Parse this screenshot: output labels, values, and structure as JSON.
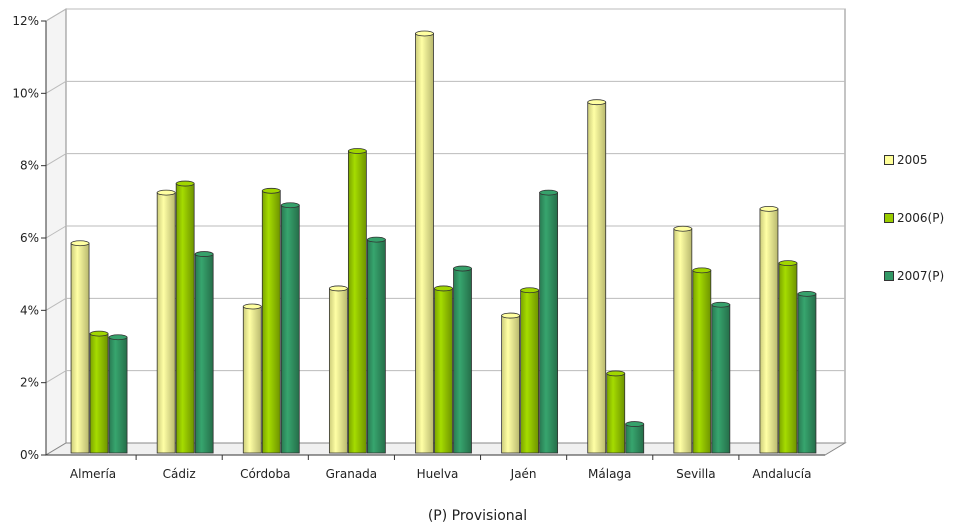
{
  "chart_data": {
    "type": "bar",
    "categories": [
      "Almería",
      "Cádiz",
      "Córdoba",
      "Granada",
      "Huelva",
      "Jaén",
      "Málaga",
      "Sevilla",
      "Andalucía"
    ],
    "series": [
      {
        "name": "2005",
        "color": "#ffff99",
        "values": [
          5.8,
          7.2,
          4.05,
          4.55,
          11.6,
          3.8,
          9.7,
          6.2,
          6.75
        ]
      },
      {
        "name": "2006(P)",
        "color": "#99cc00",
        "values": [
          3.3,
          7.45,
          7.25,
          8.35,
          4.55,
          4.5,
          2.2,
          5.05,
          5.25
        ]
      },
      {
        "name": "2007(P)",
        "color": "#339966",
        "values": [
          3.2,
          5.5,
          6.85,
          5.9,
          5.1,
          7.2,
          0.8,
          4.1,
          4.4
        ]
      }
    ],
    "yticks": [
      "0%",
      "2%",
      "4%",
      "6%",
      "8%",
      "10%",
      "12%"
    ],
    "ylim": [
      0,
      12
    ],
    "grid": true,
    "legend": "right",
    "caption": "(P) Provisional"
  }
}
